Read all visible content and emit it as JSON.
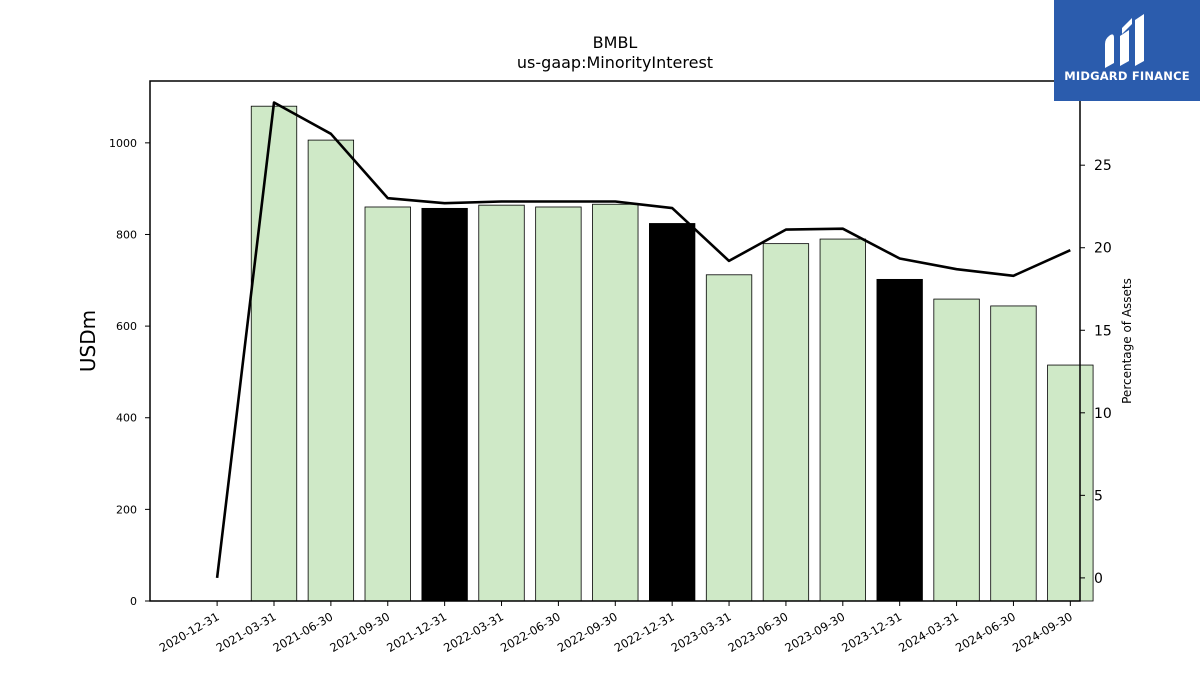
{
  "chart_data": {
    "type": "bar",
    "title": "BMBL",
    "subtitle": "us-gaap:MinorityInterest",
    "ylabel": "USDm",
    "y2label": "Percentage of Assets",
    "categories": [
      "2020-12-31",
      "2021-03-31",
      "2021-06-30",
      "2021-09-30",
      "2021-12-31",
      "2022-03-31",
      "2022-06-30",
      "2022-09-30",
      "2022-12-31",
      "2023-03-31",
      "2023-06-30",
      "2023-09-30",
      "2023-12-31",
      "2024-03-31",
      "2024-06-30",
      "2024-09-30"
    ],
    "series": [
      {
        "type": "bar",
        "values": [
          null,
          1080,
          1006,
          860,
          857,
          864,
          860,
          866,
          824,
          712,
          780,
          790,
          702,
          659,
          644,
          515
        ],
        "colors": [
          null,
          "#cfe9c7",
          "#cfe9c7",
          "#cfe9c7",
          "#000000",
          "#cfe9c7",
          "#cfe9c7",
          "#cfe9c7",
          "#000000",
          "#cfe9c7",
          "#cfe9c7",
          "#cfe9c7",
          "#000000",
          "#cfe9c7",
          "#cfe9c7",
          "#cfe9c7"
        ]
      },
      {
        "type": "line",
        "axis": "right",
        "color": "#000000",
        "values": [
          0,
          28.8,
          26.9,
          23.0,
          22.7,
          22.8,
          22.8,
          22.8,
          22.4,
          19.2,
          21.1,
          21.15,
          19.35,
          18.7,
          18.3,
          19.85
        ]
      }
    ],
    "ylim": [
      0,
      1135
    ],
    "yticks": [
      0,
      200,
      400,
      600,
      800,
      1000
    ],
    "y2lim": [
      -1.4,
      30.1
    ],
    "y2ticks": [
      0,
      5,
      10,
      15,
      20,
      25
    ],
    "grid": false
  },
  "logo": {
    "text": "MIDGARD FINANCE"
  }
}
